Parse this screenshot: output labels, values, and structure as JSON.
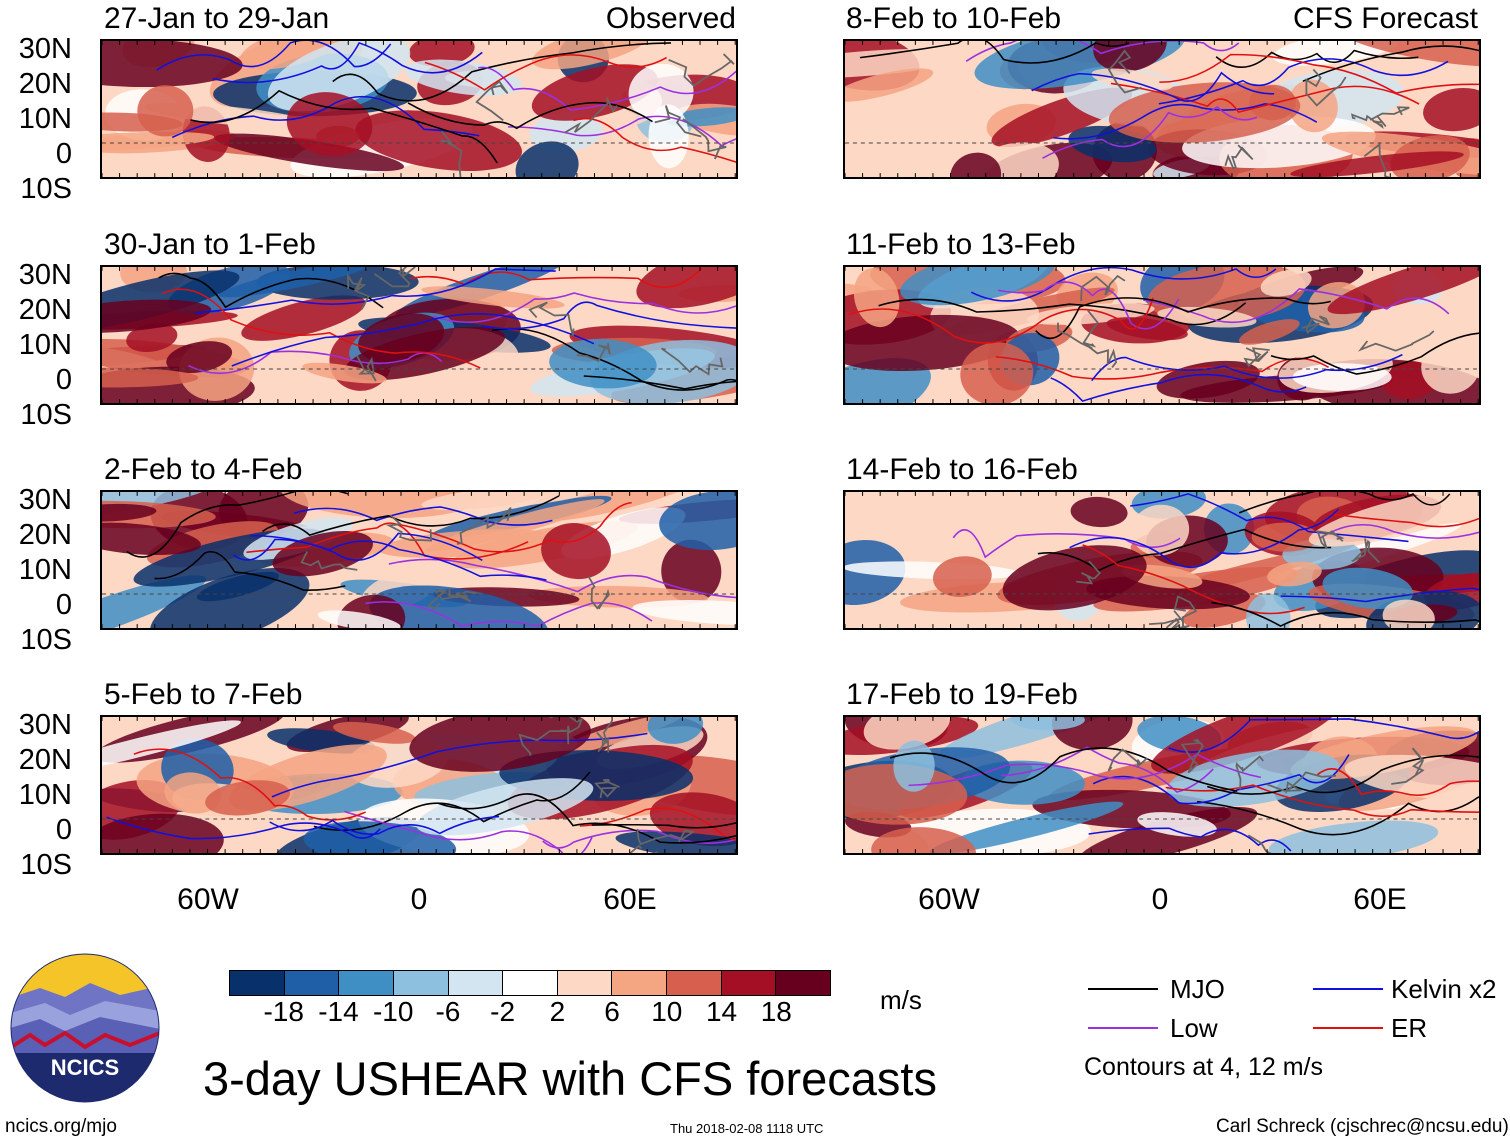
{
  "panels_left": [
    {
      "title": "27-Jan to 29-Jan",
      "label": "Observed"
    },
    {
      "title": "30-Jan to 1-Feb",
      "label": ""
    },
    {
      "title": "2-Feb to 4-Feb",
      "label": ""
    },
    {
      "title": "5-Feb to 7-Feb",
      "label": ""
    }
  ],
  "panels_right": [
    {
      "title": "8-Feb to 10-Feb",
      "label": "CFS Forecast"
    },
    {
      "title": "11-Feb to 13-Feb",
      "label": ""
    },
    {
      "title": "14-Feb to 16-Feb",
      "label": ""
    },
    {
      "title": "17-Feb to 19-Feb",
      "label": ""
    }
  ],
  "lat_labels": [
    "30N",
    "20N",
    "10N",
    "0",
    "10S"
  ],
  "lon_labels": [
    "60W",
    "0",
    "60E"
  ],
  "colorbar": {
    "colors": [
      "#08306b",
      "#1f5fa8",
      "#3f8fc5",
      "#8dc0de",
      "#d2e5f1",
      "#ffffff",
      "#fdd8c4",
      "#f4a582",
      "#d6604d",
      "#a50f25",
      "#67001f"
    ],
    "ticks": [
      "-18",
      "-14",
      "-10",
      "-6",
      "-2",
      "2",
      "6",
      "10",
      "14",
      "18"
    ],
    "units": "m/s"
  },
  "legend": {
    "items": [
      {
        "label": "MJO",
        "color": "#000000"
      },
      {
        "label": "Kelvin x2",
        "color": "#1010e0"
      },
      {
        "label": "Low",
        "color": "#9b30e0"
      },
      {
        "label": "ER",
        "color": "#e01010"
      }
    ],
    "note": "Contours at 4, 12 m/s"
  },
  "main_title": "3-day USHEAR with CFS forecasts",
  "logo_text": "NCICS",
  "footer": {
    "left": "ncics.org/mjo",
    "center": "Thu 2018-02-08 1118 UTC",
    "right": "Carl Schreck (cjschrec@ncsu.edu)"
  }
}
